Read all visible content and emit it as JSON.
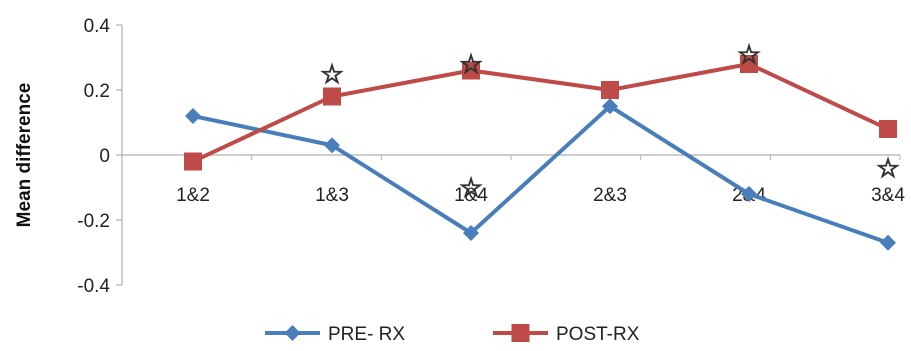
{
  "chart_data": {
    "type": "line",
    "title": "",
    "xlabel": "",
    "ylabel": "Mean difference",
    "ylim": [
      -0.4,
      0.4
    ],
    "yticks": [
      "0.4",
      "0.2",
      "0",
      "-0.2",
      "-0.4"
    ],
    "ytick_values": [
      0.4,
      0.2,
      0,
      -0.2,
      -0.4
    ],
    "categories": [
      "1&2",
      "1&3",
      "1&4",
      "2&3",
      "2&4",
      "3&4"
    ],
    "series": [
      {
        "name": "PRE- RX",
        "values": [
          0.12,
          0.03,
          -0.24,
          0.15,
          -0.12,
          -0.27
        ],
        "color": "#4a7ebb",
        "marker": "diamond"
      },
      {
        "name": "POST-RX",
        "values": [
          -0.02,
          0.18,
          0.26,
          0.2,
          0.28,
          0.08
        ],
        "color": "#be4b48",
        "marker": "square"
      }
    ],
    "annotations": [
      {
        "category": "1&3",
        "value": 0.25,
        "symbol": "☆"
      },
      {
        "category": "1&4",
        "value": 0.28,
        "symbol": "☆"
      },
      {
        "category": "1&4",
        "value": -0.1,
        "symbol": "☆"
      },
      {
        "category": "2&4",
        "value": 0.31,
        "symbol": "☆"
      },
      {
        "category": "3&4",
        "value": -0.04,
        "symbol": "☆"
      }
    ],
    "legend_position": "bottom",
    "grid": false
  }
}
